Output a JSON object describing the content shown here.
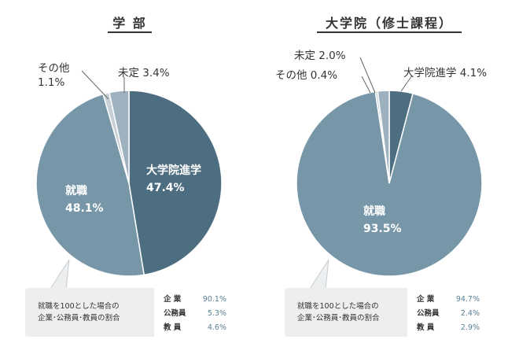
{
  "chart_data": [
    {
      "type": "pie",
      "title": "学 部",
      "slices": [
        {
          "label": "大学院進学",
          "value": 47.4,
          "display": "47.4%",
          "color": "#4d6e80"
        },
        {
          "label": "就職",
          "value": 48.1,
          "display": "48.1%",
          "color": "#7797a8"
        },
        {
          "label": "その他",
          "value": 1.1,
          "display": "1.1%",
          "color": "#c7d0d6"
        },
        {
          "label": "未定",
          "value": 3.4,
          "display": "3.4%",
          "color": "#9db2be"
        }
      ],
      "note": {
        "line1": "就職を100とした場合の",
        "line2": "企業･公務員･教員の割合",
        "rows": [
          {
            "label": "企 業",
            "value": "90.1%"
          },
          {
            "label": "公務員",
            "value": "5.3%"
          },
          {
            "label": "教 員",
            "value": "4.6%"
          }
        ]
      }
    },
    {
      "type": "pie",
      "title": "大学院（修士課程）",
      "slices": [
        {
          "label": "大学院進学",
          "value": 4.1,
          "display": "4.1%",
          "color": "#4d6e80"
        },
        {
          "label": "就職",
          "value": 93.5,
          "display": "93.5%",
          "color": "#7797a8"
        },
        {
          "label": "その他",
          "value": 0.4,
          "display": "0.4%",
          "color": "#c7d0d6"
        },
        {
          "label": "未定",
          "value": 2.0,
          "display": "2.0%",
          "color": "#9db2be"
        }
      ],
      "note": {
        "line1": "就職を100とした場合の",
        "line2": "企業･公務員･教員の割合",
        "rows": [
          {
            "label": "企 業",
            "value": "94.7%"
          },
          {
            "label": "公務員",
            "value": "2.4%"
          },
          {
            "label": "教 員",
            "value": "2.9%"
          }
        ]
      }
    }
  ]
}
